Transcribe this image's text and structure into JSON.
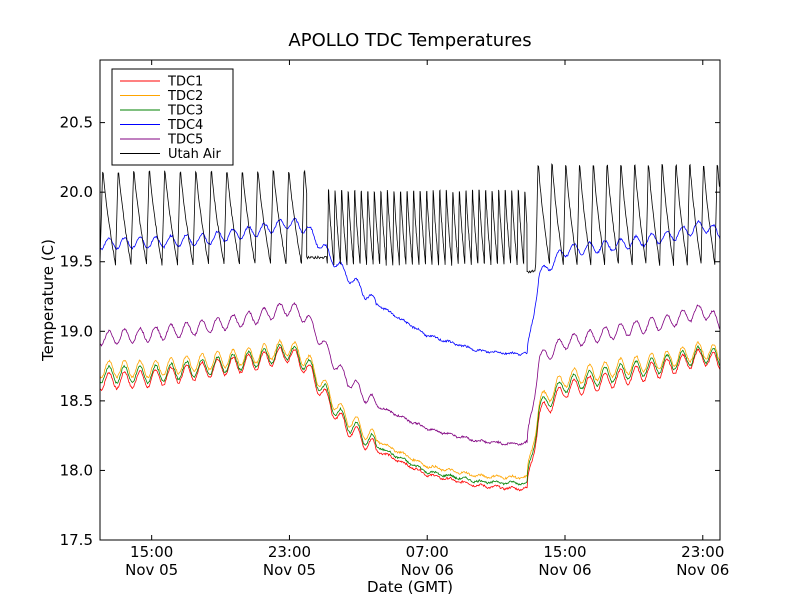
{
  "chart_data": {
    "type": "line",
    "title": "APOLLO TDC Temperatures",
    "xlabel": "Date (GMT)",
    "ylabel": "Temperature (C)",
    "xlim_hours": [
      -3,
      33
    ],
    "ylim": [
      17.5,
      20.95
    ],
    "x_unit": "hours since 2012-11-05 12:00 GMT",
    "yticks": [
      {
        "value": 17.5,
        "label": "17.5"
      },
      {
        "value": 18.0,
        "label": "18.0"
      },
      {
        "value": 18.5,
        "label": "18.5"
      },
      {
        "value": 19.0,
        "label": "19.0"
      },
      {
        "value": 19.5,
        "label": "19.5"
      },
      {
        "value": 20.0,
        "label": "20.0"
      },
      {
        "value": 20.5,
        "label": "20.5"
      }
    ],
    "xticks": [
      {
        "value": 0,
        "time": "15:00",
        "date": "Nov 05"
      },
      {
        "value": 8,
        "time": "23:00",
        "date": "Nov 05"
      },
      {
        "value": 16,
        "time": "07:00",
        "date": "Nov 06"
      },
      {
        "value": 24,
        "time": "15:00",
        "date": "Nov 06"
      },
      {
        "value": 32,
        "time": "23:00",
        "date": "Nov 06"
      }
    ],
    "legend_position": "top-left",
    "series": [
      {
        "name": "TDC1",
        "color": "#ff0000",
        "cycle_amp": 0.06,
        "points": [
          [
            -3,
            18.64
          ],
          [
            0,
            18.66
          ],
          [
            3,
            18.72
          ],
          [
            6,
            18.78
          ],
          [
            8,
            18.84
          ],
          [
            9,
            18.74
          ],
          [
            11,
            18.35
          ],
          [
            13,
            18.15
          ],
          [
            16,
            17.97
          ],
          [
            19,
            17.89
          ],
          [
            21,
            17.87
          ],
          [
            21.8,
            17.87
          ],
          [
            22.5,
            18.4
          ],
          [
            24,
            18.58
          ],
          [
            27,
            18.66
          ],
          [
            30,
            18.74
          ],
          [
            32,
            18.82
          ],
          [
            33,
            18.77
          ]
        ]
      },
      {
        "name": "TDC2",
        "color": "#ffa500",
        "cycle_amp": 0.06,
        "points": [
          [
            -3,
            18.73
          ],
          [
            0,
            18.73
          ],
          [
            3,
            18.78
          ],
          [
            6,
            18.83
          ],
          [
            8,
            18.89
          ],
          [
            9,
            18.8
          ],
          [
            11,
            18.42
          ],
          [
            13,
            18.22
          ],
          [
            16,
            18.03
          ],
          [
            19,
            17.96
          ],
          [
            21,
            17.95
          ],
          [
            21.8,
            17.95
          ],
          [
            22.5,
            18.48
          ],
          [
            24,
            18.66
          ],
          [
            27,
            18.74
          ],
          [
            30,
            18.8
          ],
          [
            32,
            18.87
          ],
          [
            33,
            18.83
          ]
        ]
      },
      {
        "name": "TDC3",
        "color": "#008000",
        "cycle_amp": 0.06,
        "points": [
          [
            -3,
            18.69
          ],
          [
            0,
            18.69
          ],
          [
            3,
            18.74
          ],
          [
            6,
            18.8
          ],
          [
            8,
            18.86
          ],
          [
            9,
            18.77
          ],
          [
            11,
            18.38
          ],
          [
            13,
            18.18
          ],
          [
            16,
            17.99
          ],
          [
            19,
            17.92
          ],
          [
            21,
            17.91
          ],
          [
            21.8,
            17.91
          ],
          [
            22.5,
            18.44
          ],
          [
            24,
            18.62
          ],
          [
            27,
            18.7
          ],
          [
            30,
            18.77
          ],
          [
            32,
            18.84
          ],
          [
            33,
            18.8
          ]
        ]
      },
      {
        "name": "TDC4",
        "color": "#0000ff",
        "cycle_amp": 0.04,
        "points": [
          [
            -3,
            19.63
          ],
          [
            0,
            19.64
          ],
          [
            3,
            19.66
          ],
          [
            6,
            19.72
          ],
          [
            8,
            19.78
          ],
          [
            9,
            19.74
          ],
          [
            11,
            19.45
          ],
          [
            13,
            19.2
          ],
          [
            16,
            18.97
          ],
          [
            19,
            18.86
          ],
          [
            21,
            18.84
          ],
          [
            21.8,
            18.84
          ],
          [
            22.5,
            19.4
          ],
          [
            24,
            19.58
          ],
          [
            27,
            19.62
          ],
          [
            30,
            19.68
          ],
          [
            32,
            19.76
          ],
          [
            33,
            19.7
          ]
        ]
      },
      {
        "name": "TDC5",
        "color": "#800080",
        "cycle_amp": 0.05,
        "points": [
          [
            -3,
            18.95
          ],
          [
            0,
            18.98
          ],
          [
            3,
            19.03
          ],
          [
            6,
            19.1
          ],
          [
            8,
            19.17
          ],
          [
            9,
            19.1
          ],
          [
            11,
            18.7
          ],
          [
            13,
            18.47
          ],
          [
            16,
            18.3
          ],
          [
            19,
            18.21
          ],
          [
            21,
            18.19
          ],
          [
            21.8,
            18.2
          ],
          [
            22.5,
            18.8
          ],
          [
            24,
            18.92
          ],
          [
            27,
            19.0
          ],
          [
            30,
            19.07
          ],
          [
            32,
            19.15
          ],
          [
            33,
            19.06
          ]
        ]
      },
      {
        "name": "Utah Air",
        "color": "#000000",
        "cycle_amp": 0,
        "min": 19.48,
        "oscillation": [
          {
            "start": -3,
            "end": 9,
            "period": 0.9,
            "peak": 20.2
          },
          {
            "start": 10.2,
            "end": 21.8,
            "period": 0.38,
            "peak": 20.05
          },
          {
            "start": 22.3,
            "end": 33,
            "period": 0.8,
            "peak": 20.25
          }
        ]
      }
    ]
  }
}
